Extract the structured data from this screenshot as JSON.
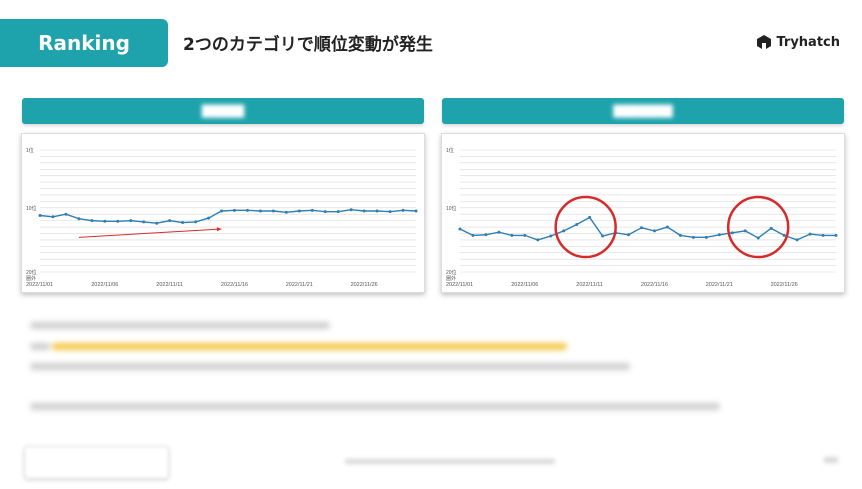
{
  "header": {
    "badge": "Ranking",
    "title": "2つのカテゴリで順位変動が発生",
    "logo_text": "Tryhatch",
    "accent_color": "#1ea3ad"
  },
  "chart_data": [
    {
      "type": "line",
      "title": "",
      "y_ticks": [
        "1位",
        "10位",
        "20位\n圏外"
      ],
      "ylim": [
        1,
        20
      ],
      "y_reversed": true,
      "x_ticks": [
        "2022/11/01",
        "2022/11/06",
        "2022/11/11",
        "2022/11/16",
        "2022/11/21",
        "2022/11/26"
      ],
      "x": [
        "2022/11/01",
        "2022/11/02",
        "2022/11/03",
        "2022/11/04",
        "2022/11/05",
        "2022/11/06",
        "2022/11/07",
        "2022/11/08",
        "2022/11/09",
        "2022/11/10",
        "2022/11/11",
        "2022/11/12",
        "2022/11/13",
        "2022/11/14",
        "2022/11/15",
        "2022/11/16",
        "2022/11/17",
        "2022/11/18",
        "2022/11/19",
        "2022/11/20",
        "2022/11/21",
        "2022/11/22",
        "2022/11/23",
        "2022/11/24",
        "2022/11/25",
        "2022/11/26",
        "2022/11/27",
        "2022/11/28",
        "2022/11/29",
        "2022/11/30"
      ],
      "series": [
        {
          "values": [
            11.2,
            11.4,
            11.0,
            11.7,
            12.0,
            12.1,
            12.1,
            12.0,
            12.2,
            12.4,
            12.0,
            12.3,
            12.2,
            11.6,
            10.5,
            10.4,
            10.4,
            10.5,
            10.5,
            10.7,
            10.5,
            10.4,
            10.6,
            10.6,
            10.3,
            10.5,
            10.5,
            10.6,
            10.4,
            10.5
          ],
          "color": "#2f7fb3"
        }
      ],
      "annotations": [
        {
          "type": "arrow",
          "color": "#d62b2b",
          "from_x": "2022/11/04",
          "to_x": "2022/11/15"
        }
      ]
    },
    {
      "type": "line",
      "title": "",
      "y_ticks": [
        "1位",
        "10位",
        "20位\n圏外"
      ],
      "ylim": [
        1,
        20
      ],
      "y_reversed": true,
      "x_ticks": [
        "2022/11/01",
        "2022/11/06",
        "2022/11/11",
        "2022/11/16",
        "2022/11/21",
        "2022/11/26"
      ],
      "x": [
        "2022/11/01",
        "2022/11/02",
        "2022/11/03",
        "2022/11/04",
        "2022/11/05",
        "2022/11/06",
        "2022/11/07",
        "2022/11/08",
        "2022/11/09",
        "2022/11/10",
        "2022/11/11",
        "2022/11/12",
        "2022/11/13",
        "2022/11/14",
        "2022/11/15",
        "2022/11/16",
        "2022/11/17",
        "2022/11/18",
        "2022/11/19",
        "2022/11/20",
        "2022/11/21",
        "2022/11/22",
        "2022/11/23",
        "2022/11/24",
        "2022/11/25",
        "2022/11/26",
        "2022/11/27",
        "2022/11/28",
        "2022/11/29",
        "2022/11/30"
      ],
      "series": [
        {
          "values": [
            13.3,
            14.3,
            14.2,
            13.8,
            14.3,
            14.3,
            15.0,
            14.4,
            13.6,
            12.6,
            11.5,
            14.4,
            13.9,
            14.2,
            13.1,
            13.6,
            13.0,
            14.3,
            14.6,
            14.6,
            14.2,
            13.9,
            13.6,
            14.7,
            13.2,
            14.3,
            15.0,
            14.1,
            14.3,
            14.3
          ],
          "color": "#2f7fb3"
        }
      ],
      "annotations": [
        {
          "type": "circle",
          "color": "#d62b2b",
          "center_x": "2022/11/11"
        },
        {
          "type": "circle",
          "color": "#d62b2b",
          "center_x": "2022/11/24"
        }
      ]
    }
  ]
}
